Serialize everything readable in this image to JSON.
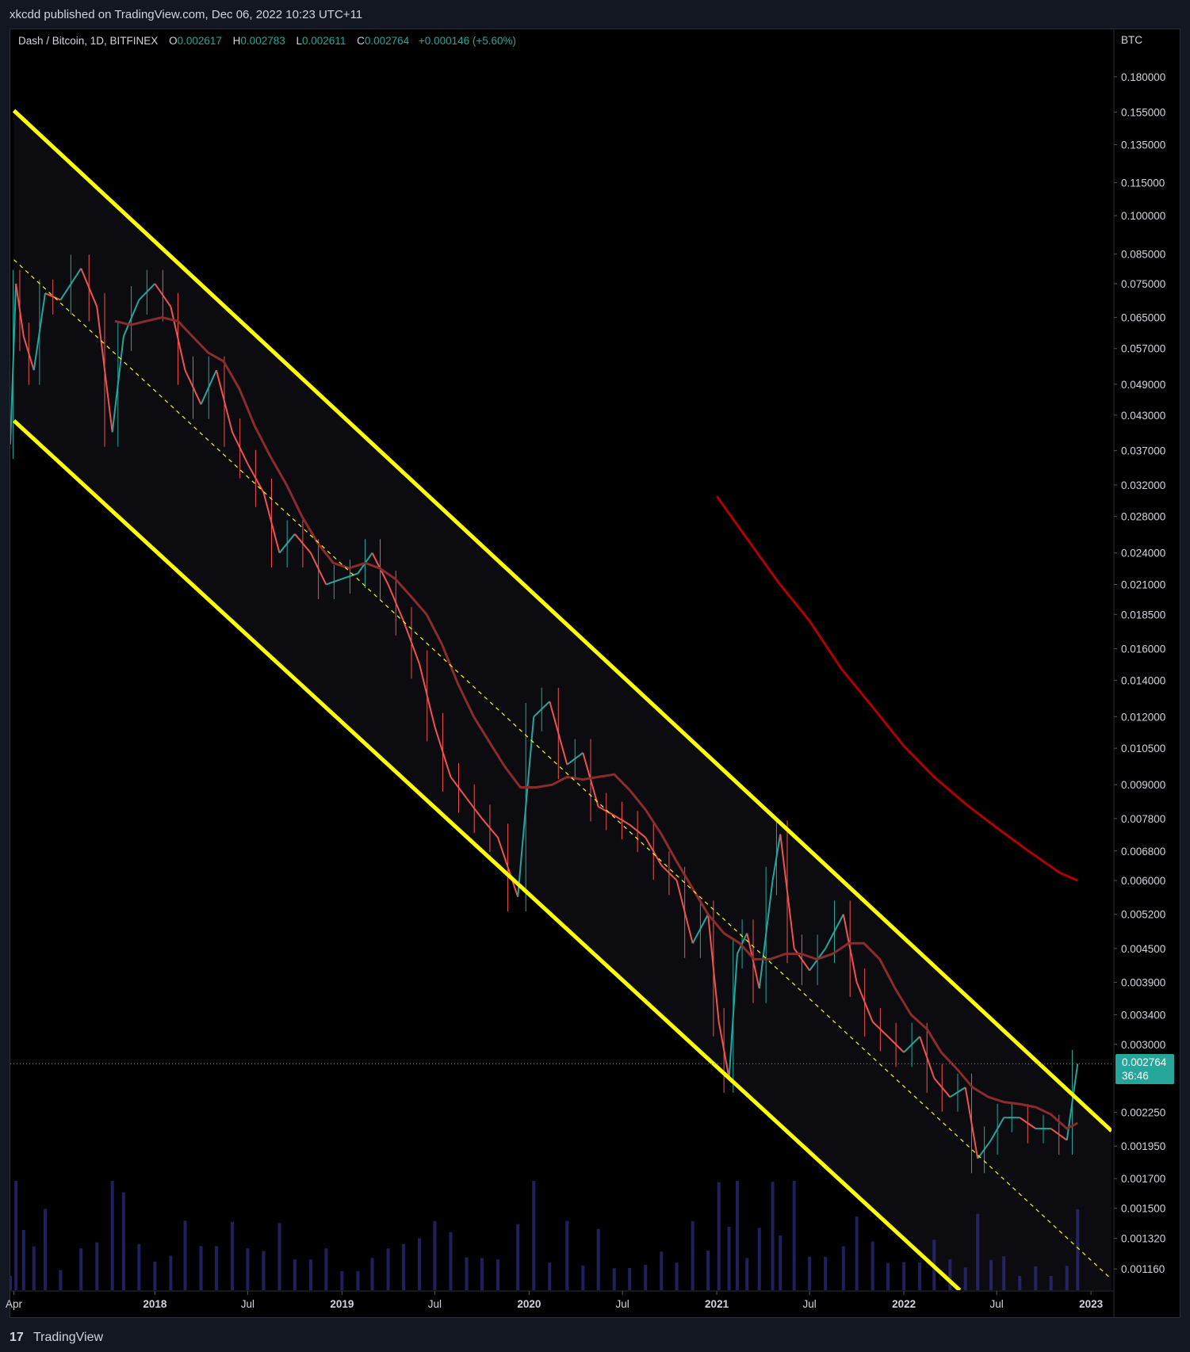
{
  "header": {
    "published": "xkcdd published on TradingView.com, Dec 06, 2022 10:23 UTC+11"
  },
  "legend": {
    "symbol": "Dash / Bitcoin, 1D, BITFINEX",
    "o_label": "O",
    "o_value": "0.002617",
    "h_label": "H",
    "h_value": "0.002783",
    "l_label": "L",
    "l_value": "0.002611",
    "c_label": "C",
    "c_value": "0.002764",
    "change": "+0.000146 (+5.60%)"
  },
  "price_tag": {
    "value": "0.002764",
    "countdown": "36:46"
  },
  "footer": {
    "logo_glyph": "17",
    "brand": "TradingView"
  },
  "colors": {
    "background": "#000000",
    "channel": "#ffff00",
    "up": "#26a69a",
    "down": "#ef5350",
    "ma_fast": "#8b2c2c",
    "ma_slow": "#b00000",
    "volume": "#3a3aa8",
    "grid_text": "#d1d4dc"
  },
  "chart_data": {
    "type": "candlestick",
    "title": "Dash / Bitcoin, 1D, BITFINEX",
    "y_unit": "BTC",
    "y_scale": "log",
    "grid": false,
    "ylim": [
      0.00106,
      0.22
    ],
    "xlim": [
      "2017-03-25",
      "2023-02-10"
    ],
    "x_ticks": [
      "Apr",
      "2018",
      "Jul",
      "2019",
      "Jul",
      "2020",
      "Jul",
      "2021",
      "Jul",
      "2022",
      "Jul",
      "2023"
    ],
    "x_tick_dates": [
      "2017-04-01",
      "2018-01-01",
      "2018-07-01",
      "2019-01-01",
      "2019-07-01",
      "2020-01-01",
      "2020-07-01",
      "2021-01-01",
      "2021-07-01",
      "2022-01-01",
      "2022-07-01",
      "2023-01-01"
    ],
    "y_ticks": [
      0.18,
      0.155,
      0.135,
      0.115,
      0.1,
      0.085,
      0.075,
      0.065,
      0.057,
      0.049,
      0.043,
      0.037,
      0.032,
      0.028,
      0.024,
      0.021,
      0.0185,
      0.016,
      0.014,
      0.012,
      0.0105,
      0.009,
      0.0078,
      0.0068,
      0.006,
      0.0052,
      0.0045,
      0.0039,
      0.0034,
      0.003,
      0.00225,
      0.00195,
      0.0017,
      0.0015,
      0.00132,
      0.00116
    ],
    "y_tick_labels": [
      "0.180000",
      "0.155000",
      "0.135000",
      "0.115000",
      "0.100000",
      "0.085000",
      "0.075000",
      "0.065000",
      "0.057000",
      "0.049000",
      "0.043000",
      "0.037000",
      "0.032000",
      "0.028000",
      "0.024000",
      "0.021000",
      "0.018500",
      "0.016000",
      "0.014000",
      "0.012000",
      "0.010500",
      "0.009000",
      "0.007800",
      "0.006800",
      "0.006000",
      "0.005200",
      "0.004500",
      "0.003900",
      "0.003400",
      "0.003000",
      "0.002250",
      "0.001950",
      "0.001700",
      "0.001500",
      "0.001320",
      "0.001160"
    ],
    "last_close": 0.002764,
    "price_path": [
      [
        "2017-03-25",
        0.038
      ],
      [
        "2017-04-05",
        0.075
      ],
      [
        "2017-04-20",
        0.06
      ],
      [
        "2017-05-10",
        0.052
      ],
      [
        "2017-06-01",
        0.072
      ],
      [
        "2017-07-01",
        0.07
      ],
      [
        "2017-08-10",
        0.08
      ],
      [
        "2017-09-10",
        0.068
      ],
      [
        "2017-10-10",
        0.04
      ],
      [
        "2017-11-01",
        0.06
      ],
      [
        "2017-12-01",
        0.07
      ],
      [
        "2018-01-01",
        0.075
      ],
      [
        "2018-02-01",
        0.068
      ],
      [
        "2018-03-01",
        0.052
      ],
      [
        "2018-04-01",
        0.045
      ],
      [
        "2018-05-01",
        0.052
      ],
      [
        "2018-06-01",
        0.04
      ],
      [
        "2018-07-01",
        0.035
      ],
      [
        "2018-08-01",
        0.031
      ],
      [
        "2018-09-01",
        0.024
      ],
      [
        "2018-10-01",
        0.026
      ],
      [
        "2018-11-01",
        0.024
      ],
      [
        "2018-12-01",
        0.021
      ],
      [
        "2019-01-01",
        0.0215
      ],
      [
        "2019-02-01",
        0.022
      ],
      [
        "2019-03-01",
        0.024
      ],
      [
        "2019-04-01",
        0.021
      ],
      [
        "2019-05-01",
        0.018
      ],
      [
        "2019-06-01",
        0.015
      ],
      [
        "2019-07-01",
        0.0115
      ],
      [
        "2019-08-01",
        0.0093
      ],
      [
        "2019-09-01",
        0.0085
      ],
      [
        "2019-10-01",
        0.0078
      ],
      [
        "2019-11-01",
        0.0072
      ],
      [
        "2019-12-10",
        0.0056
      ],
      [
        "2020-01-10",
        0.012
      ],
      [
        "2020-02-10",
        0.0128
      ],
      [
        "2020-03-15",
        0.0098
      ],
      [
        "2020-04-15",
        0.0103
      ],
      [
        "2020-05-15",
        0.0082
      ],
      [
        "2020-06-15",
        0.0079
      ],
      [
        "2020-07-15",
        0.0076
      ],
      [
        "2020-08-15",
        0.0072
      ],
      [
        "2020-09-15",
        0.0064
      ],
      [
        "2020-10-15",
        0.006
      ],
      [
        "2020-11-15",
        0.0046
      ],
      [
        "2020-12-15",
        0.0052
      ],
      [
        "2021-01-05",
        0.0033
      ],
      [
        "2021-01-25",
        0.0026
      ],
      [
        "2021-02-10",
        0.0044
      ],
      [
        "2021-03-01",
        0.0048
      ],
      [
        "2021-03-25",
        0.0038
      ],
      [
        "2021-04-20",
        0.006
      ],
      [
        "2021-05-05",
        0.0073
      ],
      [
        "2021-06-01",
        0.0045
      ],
      [
        "2021-07-01",
        0.0041
      ],
      [
        "2021-08-01",
        0.0045
      ],
      [
        "2021-09-05",
        0.0052
      ],
      [
        "2021-10-01",
        0.0039
      ],
      [
        "2021-11-01",
        0.0033
      ],
      [
        "2021-12-01",
        0.0031
      ],
      [
        "2022-01-01",
        0.0029
      ],
      [
        "2022-02-01",
        0.0031
      ],
      [
        "2022-03-01",
        0.0026
      ],
      [
        "2022-04-01",
        0.0024
      ],
      [
        "2022-05-01",
        0.0025
      ],
      [
        "2022-05-25",
        0.00185
      ],
      [
        "2022-06-20",
        0.002
      ],
      [
        "2022-07-15",
        0.0022
      ],
      [
        "2022-08-15",
        0.0022
      ],
      [
        "2022-09-15",
        0.0021
      ],
      [
        "2022-10-15",
        0.0021
      ],
      [
        "2022-11-15",
        0.002
      ],
      [
        "2022-12-06",
        0.002764
      ]
    ],
    "ma_fast": [
      [
        "2017-10-15",
        0.064
      ],
      [
        "2017-11-15",
        0.063
      ],
      [
        "2017-12-15",
        0.064
      ],
      [
        "2018-01-15",
        0.065
      ],
      [
        "2018-02-15",
        0.064
      ],
      [
        "2018-03-15",
        0.06
      ],
      [
        "2018-04-15",
        0.056
      ],
      [
        "2018-05-15",
        0.054
      ],
      [
        "2018-06-15",
        0.048
      ],
      [
        "2018-07-15",
        0.041
      ],
      [
        "2018-08-15",
        0.036
      ],
      [
        "2018-09-15",
        0.032
      ],
      [
        "2018-10-15",
        0.028
      ],
      [
        "2018-11-15",
        0.025
      ],
      [
        "2018-12-15",
        0.023
      ],
      [
        "2019-01-15",
        0.0225
      ],
      [
        "2019-02-15",
        0.023
      ],
      [
        "2019-03-15",
        0.0225
      ],
      [
        "2019-04-15",
        0.0215
      ],
      [
        "2019-05-15",
        0.02
      ],
      [
        "2019-06-15",
        0.0185
      ],
      [
        "2019-07-15",
        0.0163
      ],
      [
        "2019-08-15",
        0.0138
      ],
      [
        "2019-09-15",
        0.012
      ],
      [
        "2019-10-15",
        0.0108
      ],
      [
        "2019-11-15",
        0.0097
      ],
      [
        "2019-12-15",
        0.0089
      ],
      [
        "2020-01-15",
        0.0089
      ],
      [
        "2020-02-15",
        0.009
      ],
      [
        "2020-03-15",
        0.0093
      ],
      [
        "2020-04-15",
        0.0092
      ],
      [
        "2020-05-15",
        0.0093
      ],
      [
        "2020-06-15",
        0.0094
      ],
      [
        "2020-07-15",
        0.0088
      ],
      [
        "2020-08-15",
        0.0081
      ],
      [
        "2020-09-15",
        0.0073
      ],
      [
        "2020-10-15",
        0.0065
      ],
      [
        "2020-11-15",
        0.0058
      ],
      [
        "2020-12-15",
        0.0052
      ],
      [
        "2021-01-15",
        0.0048
      ],
      [
        "2021-02-15",
        0.0046
      ],
      [
        "2021-03-15",
        0.0043
      ],
      [
        "2021-04-15",
        0.0043
      ],
      [
        "2021-05-15",
        0.0044
      ],
      [
        "2021-06-15",
        0.0044
      ],
      [
        "2021-07-15",
        0.0043
      ],
      [
        "2021-08-15",
        0.0044
      ],
      [
        "2021-09-15",
        0.0046
      ],
      [
        "2021-10-15",
        0.0046
      ],
      [
        "2021-11-15",
        0.0043
      ],
      [
        "2021-12-15",
        0.0038
      ],
      [
        "2022-01-15",
        0.0034
      ],
      [
        "2022-02-15",
        0.0032
      ],
      [
        "2022-03-15",
        0.0029
      ],
      [
        "2022-04-15",
        0.0027
      ],
      [
        "2022-05-15",
        0.0025
      ],
      [
        "2022-06-15",
        0.0024
      ],
      [
        "2022-07-15",
        0.00235
      ],
      [
        "2022-08-15",
        0.00233
      ],
      [
        "2022-09-15",
        0.0023
      ],
      [
        "2022-10-15",
        0.00223
      ],
      [
        "2022-11-15",
        0.0021
      ],
      [
        "2022-12-06",
        0.00215
      ]
    ],
    "ma_slow": [
      [
        "2021-01-01",
        0.0305
      ],
      [
        "2021-03-01",
        0.0255
      ],
      [
        "2021-05-01",
        0.0212
      ],
      [
        "2021-07-01",
        0.018
      ],
      [
        "2021-09-01",
        0.0147
      ],
      [
        "2021-11-01",
        0.0125
      ],
      [
        "2022-01-01",
        0.0106
      ],
      [
        "2022-03-01",
        0.0093
      ],
      [
        "2022-05-01",
        0.0083
      ],
      [
        "2022-07-01",
        0.0075
      ],
      [
        "2022-09-01",
        0.0068
      ],
      [
        "2022-11-01",
        0.0062
      ],
      [
        "2022-12-06",
        0.006
      ]
    ],
    "channel": {
      "upper": [
        [
          "2017-04-01",
          0.156
        ],
        [
          "2023-02-10",
          0.00208
        ]
      ],
      "middle": [
        [
          "2017-04-01",
          0.083
        ],
        [
          "2023-02-10",
          0.00111
        ]
      ],
      "lower": [
        [
          "2017-04-01",
          0.042
        ],
        [
          "2022-04-20",
          0.00106
        ]
      ]
    }
  }
}
